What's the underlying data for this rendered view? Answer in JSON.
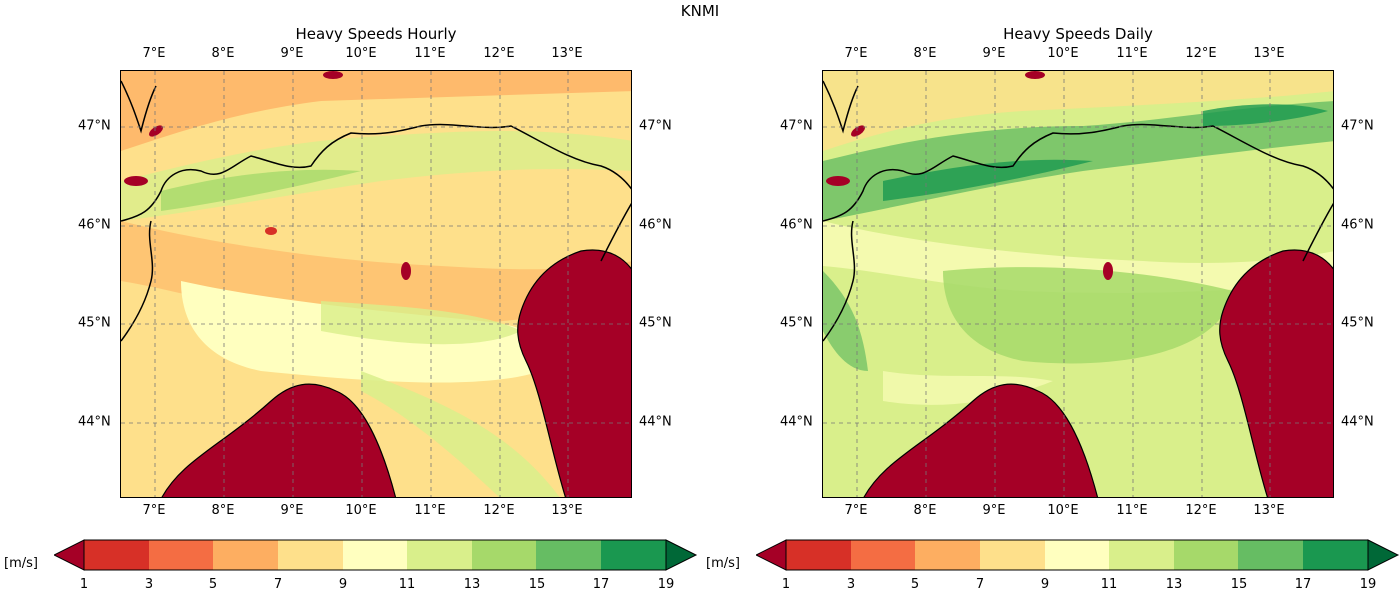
{
  "suptitle": "KNMI",
  "panels": [
    {
      "title": "Heavy Speeds Hourly"
    },
    {
      "title": "Heavy Speeds Daily"
    }
  ],
  "lon_ticks": [
    "7°E",
    "8°E",
    "9°E",
    "10°E",
    "11°E",
    "12°E",
    "13°E"
  ],
  "lat_ticks": [
    "47°N",
    "46°N",
    "45°N",
    "44°N"
  ],
  "colorbar": {
    "unit": "[m/s]",
    "ticks": [
      "1",
      "3",
      "5",
      "7",
      "9",
      "11",
      "13",
      "15",
      "17",
      "19"
    ],
    "colors": [
      "#a50026",
      "#d73027",
      "#f46d43",
      "#fdae61",
      "#fee08b",
      "#ffffbf",
      "#d9ef8b",
      "#a6d96a",
      "#66bd63",
      "#1a9850",
      "#006837"
    ]
  },
  "colors": {
    "sea": "#a50026",
    "land_low": "#ffffbf",
    "land_mid": "#fee08b"
  }
}
